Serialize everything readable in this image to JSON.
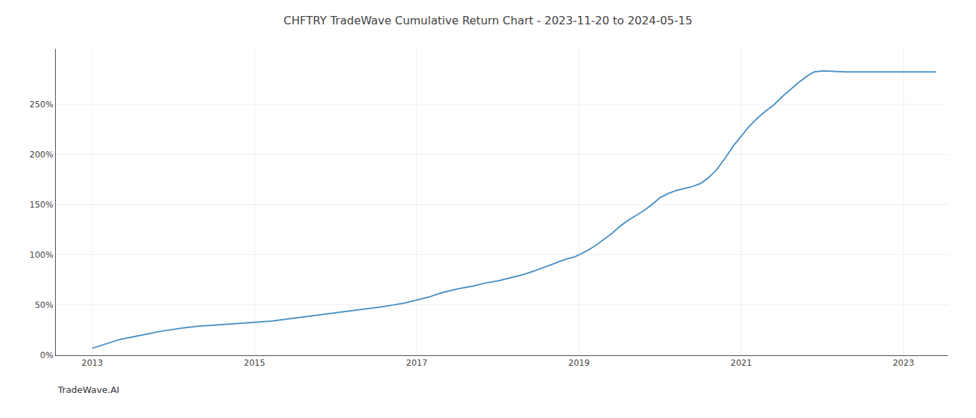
{
  "chart_data": {
    "type": "line",
    "title": "CHFTRY TradeWave Cumulative Return Chart - 2023-11-20 to 2024-05-15",
    "annotations": [
      "TradeWave.AI"
    ],
    "x": [
      2013.0,
      2013.15,
      2013.35,
      2013.6,
      2013.85,
      2014.1,
      2014.3,
      2014.5,
      2014.7,
      2014.85,
      2015.0,
      2015.2,
      2015.4,
      2015.6,
      2015.8,
      2016.0,
      2016.2,
      2016.4,
      2016.55,
      2016.7,
      2016.85,
      2017.0,
      2017.15,
      2017.3,
      2017.5,
      2017.7,
      2017.85,
      2018.0,
      2018.15,
      2018.3,
      2018.45,
      2018.55,
      2018.65,
      2018.75,
      2018.85,
      2018.95,
      2019.0,
      2019.1,
      2019.2,
      2019.3,
      2019.4,
      2019.5,
      2019.6,
      2019.7,
      2019.8,
      2019.9,
      2020.0,
      2020.1,
      2020.2,
      2020.3,
      2020.4,
      2020.5,
      2020.6,
      2020.7,
      2020.8,
      2020.9,
      2021.0,
      2021.1,
      2021.2,
      2021.3,
      2021.4,
      2021.5,
      2021.6,
      2021.7,
      2021.8,
      2021.85,
      2021.9,
      2022.0,
      2022.3,
      2022.6,
      2022.9,
      2023.2,
      2023.4
    ],
    "values": [
      7,
      11,
      16,
      20,
      24,
      27,
      29,
      30,
      31,
      32,
      33,
      34,
      36,
      38,
      40,
      42,
      44,
      46,
      48,
      50,
      52,
      55,
      58,
      62,
      66,
      69,
      72,
      74,
      77,
      80,
      84,
      87,
      90,
      93,
      96,
      98,
      100,
      104,
      109,
      115,
      121,
      128,
      134,
      139,
      144,
      150,
      157,
      161,
      164,
      166,
      168,
      171,
      177,
      185,
      196,
      208,
      218,
      228,
      236,
      243,
      249,
      257,
      264,
      271,
      277,
      280,
      282,
      283,
      282,
      282,
      282,
      282,
      282
    ],
    "color": "#4a90c4",
    "xlim": [
      2012.55,
      2023.55
    ],
    "xticks": [
      2013,
      2015,
      2017,
      2019,
      2021,
      2023
    ],
    "ylim": [
      0,
      305
    ],
    "yticks": [
      {
        "value": 0,
        "label": "0%"
      },
      {
        "value": 50,
        "label": "50%"
      },
      {
        "value": 100,
        "label": "100%"
      },
      {
        "value": 150,
        "label": "150%"
      },
      {
        "value": 200,
        "label": "200%"
      },
      {
        "value": 250,
        "label": "250%"
      }
    ],
    "grid": true
  }
}
